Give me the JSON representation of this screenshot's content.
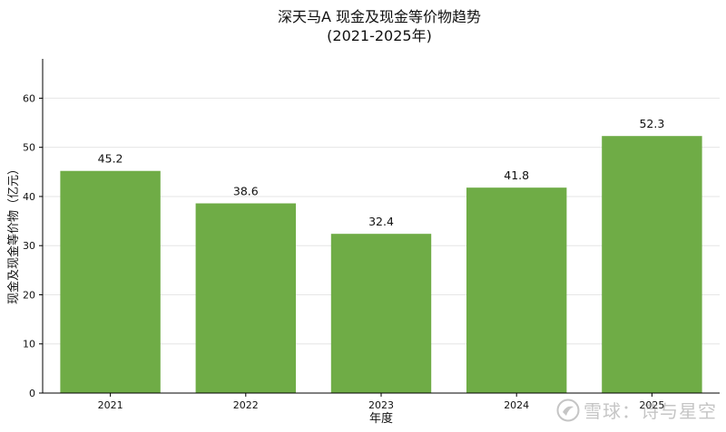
{
  "chart_data": {
    "type": "bar",
    "title": "深天马A 现金及现金等价物趋势",
    "subtitle": "(2021-2025年)",
    "xlabel": "年度",
    "ylabel": "现金及现金等价物（亿元）",
    "categories": [
      "2021",
      "2022",
      "2023",
      "2024",
      "2025"
    ],
    "values": [
      45.2,
      38.6,
      32.4,
      41.8,
      52.3
    ],
    "data_labels": [
      "45.2",
      "38.6",
      "32.4",
      "41.8",
      "52.3"
    ],
    "ylim": [
      0,
      68
    ],
    "yticks": [
      0,
      10,
      20,
      30,
      40,
      50,
      60
    ],
    "grid": "horizontal",
    "bar_color": "#6fac46"
  },
  "watermark": {
    "text": "雪球：诗与星空",
    "icon": "snowball-logo-icon"
  }
}
